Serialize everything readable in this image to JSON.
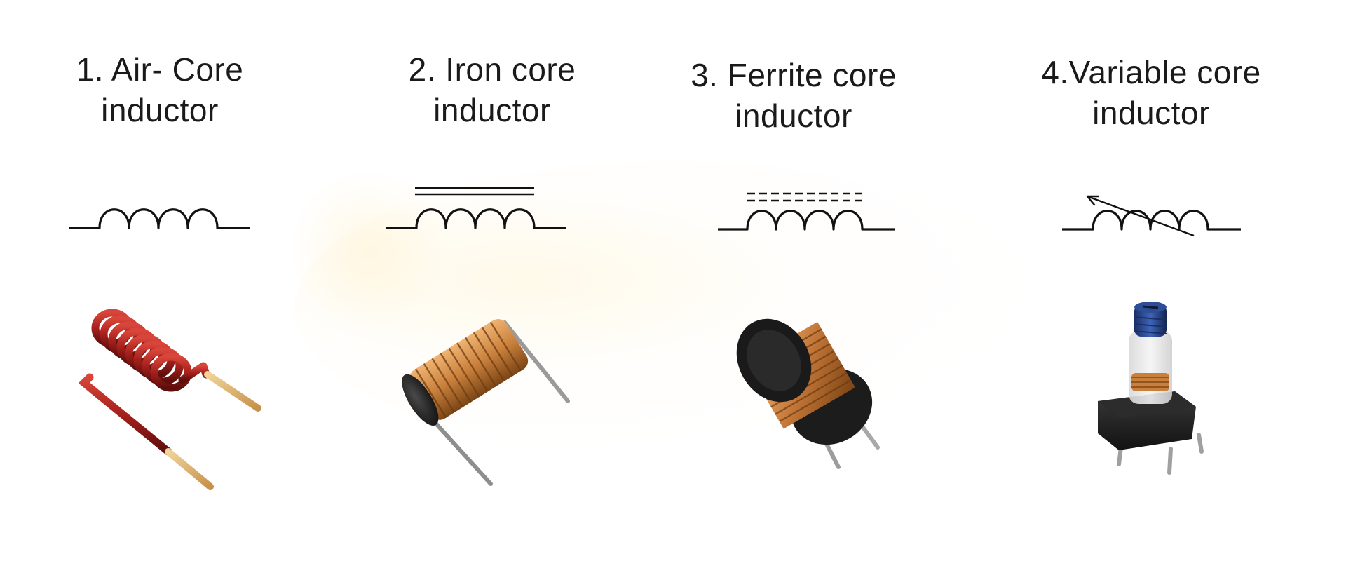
{
  "inductors": [
    {
      "title_line1": "1. Air- Core",
      "title_line2": "inductor"
    },
    {
      "title_line1": "2. Iron core",
      "title_line2": "inductor"
    },
    {
      "title_line1": "3. Ferrite core",
      "title_line2": "inductor"
    },
    {
      "title_line1": "4.Variable core",
      "title_line2": "inductor"
    }
  ],
  "colors": {
    "text": "#1a1a1a",
    "symbol_stroke": "#111111",
    "air_core_wire": "#a5201c",
    "copper_wire": "#c9803c",
    "ferrite_body": "#1c1c1c",
    "adjust_screw": "#23407a",
    "lead_metal": "#9a9a9a",
    "gold_lead": "#d9b06a"
  },
  "icons": [
    "air-core-inductor-symbol",
    "iron-core-inductor-symbol",
    "ferrite-core-inductor-symbol",
    "variable-inductor-symbol"
  ]
}
